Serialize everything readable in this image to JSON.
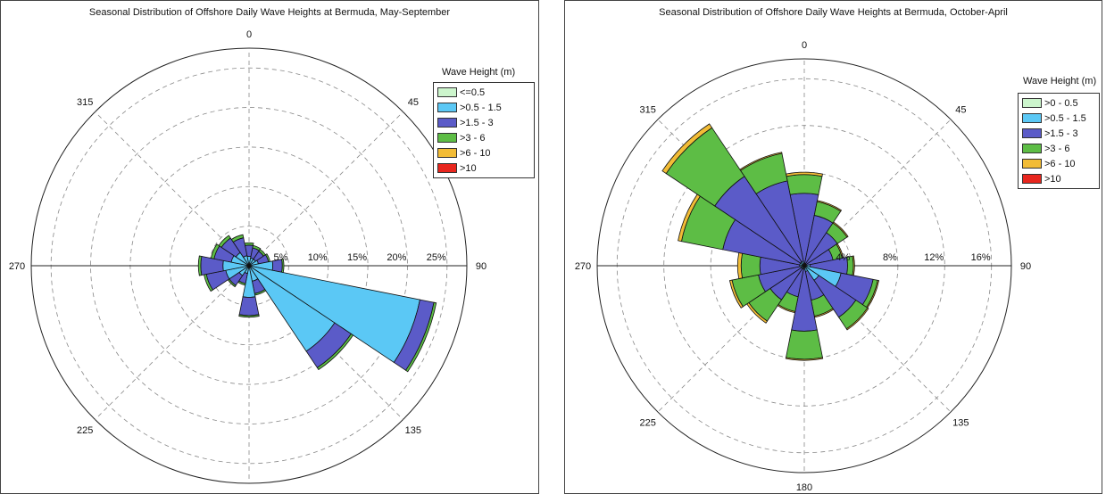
{
  "chart_data": [
    {
      "type": "wind-rose",
      "title": "Seasonal Distribution of Offshore Daily Wave Heights at Bermuda, May-September",
      "direction_labels": [
        "0",
        "45",
        "90",
        "135",
        "180",
        "225",
        "270",
        "315"
      ],
      "radial_ticks": [
        5,
        10,
        15,
        20,
        25
      ],
      "radial_tick_labels": [
        "5%",
        "10%",
        "15%",
        "20%",
        "25%"
      ],
      "rmax": 27.5,
      "legend_title": "Wave Height (m)",
      "series": [
        {
          "name": "<=0.5",
          "color": "#ccf5cc"
        },
        {
          "name": ">0.5 - 1.5",
          "color": "#5bc8f5"
        },
        {
          "name": ">1.5 - 3",
          "color": "#5b5bc8"
        },
        {
          "name": ">3 - 6",
          "color": "#5dbd45"
        },
        {
          "name": ">6 - 10",
          "color": "#f2bc36"
        },
        {
          "name": ">10",
          "color": "#e8261e"
        }
      ],
      "sector_width_deg": 22.5,
      "sectors": [
        {
          "dir": 0,
          "values": [
            0,
            1.2,
            1.4,
            0.3,
            0,
            0
          ]
        },
        {
          "dir": 22.5,
          "values": [
            0,
            1.0,
            1.3,
            0.3,
            0,
            0
          ]
        },
        {
          "dir": 45,
          "values": [
            0,
            1.0,
            1.2,
            0.3,
            0,
            0
          ]
        },
        {
          "dir": 67.5,
          "values": [
            0,
            1.2,
            1.3,
            0.2,
            0,
            0
          ]
        },
        {
          "dir": 90,
          "values": [
            0,
            3.0,
            1.2,
            0.2,
            0,
            0
          ]
        },
        {
          "dir": 112.5,
          "values": [
            0,
            22.0,
            1.8,
            0.3,
            0,
            0
          ]
        },
        {
          "dir": 135,
          "values": [
            0,
            13.0,
            2.5,
            0.3,
            0,
            0
          ]
        },
        {
          "dir": 157.5,
          "values": [
            0,
            2.0,
            1.6,
            0.2,
            0,
            0
          ]
        },
        {
          "dir": 180,
          "values": [
            0,
            4.0,
            2.3,
            0.2,
            0,
            0
          ]
        },
        {
          "dir": 202.5,
          "values": [
            0,
            1.0,
            1.3,
            0.2,
            0,
            0
          ]
        },
        {
          "dir": 225,
          "values": [
            0,
            1.5,
            1.5,
            0.2,
            0,
            0
          ]
        },
        {
          "dir": 247.5,
          "values": [
            0,
            3.0,
            2.5,
            0.3,
            0,
            0
          ]
        },
        {
          "dir": 270,
          "values": [
            0,
            3.3,
            2.8,
            0.3,
            0,
            0
          ]
        },
        {
          "dir": 292.5,
          "values": [
            0,
            2.3,
            2.2,
            0.4,
            0,
            0
          ]
        },
        {
          "dir": 315,
          "values": [
            0,
            2.0,
            2.2,
            0.4,
            0,
            0
          ]
        },
        {
          "dir": 337.5,
          "values": [
            0,
            1.3,
            2.3,
            0.4,
            0,
            0
          ]
        }
      ]
    },
    {
      "type": "wind-rose",
      "title": "Seasonal Distribution of Offshore Daily Wave Heights at Bermuda, October-April",
      "direction_labels": [
        "0",
        "45",
        "90",
        "135",
        "180",
        "225",
        "270",
        "315"
      ],
      "radial_ticks": [
        4,
        8,
        12,
        16
      ],
      "radial_tick_labels": [
        "4%",
        "8%",
        "12%",
        "16%"
      ],
      "rmax": 17.7,
      "legend_title": "Wave Height (m)",
      "series": [
        {
          "name": ">0 - 0.5",
          "color": "#ccf5cc"
        },
        {
          "name": ">0.5 - 1.5",
          "color": "#5bc8f5"
        },
        {
          "name": ">1.5 - 3",
          "color": "#5b5bc8"
        },
        {
          "name": ">3 - 6",
          "color": "#5dbd45"
        },
        {
          "name": ">6 - 10",
          "color": "#f2bc36"
        },
        {
          "name": ">10",
          "color": "#e8261e"
        }
      ],
      "sector_width_deg": 22.5,
      "sectors": [
        {
          "dir": 0,
          "values": [
            0,
            0.2,
            6.0,
            1.6,
            0.2,
            0
          ]
        },
        {
          "dir": 22.5,
          "values": [
            0,
            0.2,
            4.2,
            1.2,
            0.1,
            0
          ]
        },
        {
          "dir": 45,
          "values": [
            0,
            0.2,
            3.2,
            1.0,
            0.1,
            0
          ]
        },
        {
          "dir": 67.5,
          "values": [
            0,
            0.2,
            2.3,
            0.8,
            0.1,
            0
          ]
        },
        {
          "dir": 90,
          "values": [
            0,
            0.5,
            3.2,
            0.5,
            0.1,
            0
          ]
        },
        {
          "dir": 112.5,
          "values": [
            0,
            3.2,
            2.8,
            0.4,
            0.1,
            0
          ]
        },
        {
          "dir": 135,
          "values": [
            0,
            1.5,
            3.8,
            1.2,
            0.1,
            0
          ]
        },
        {
          "dir": 157.5,
          "values": [
            0,
            0.5,
            2.5,
            1.4,
            0.1,
            0
          ]
        },
        {
          "dir": 180,
          "values": [
            0,
            0.3,
            5.3,
            2.4,
            0.1,
            0
          ]
        },
        {
          "dir": 202.5,
          "values": [
            0,
            0.3,
            2.4,
            1.3,
            0.1,
            0
          ]
        },
        {
          "dir": 225,
          "values": [
            0,
            0.3,
            3.2,
            2.2,
            0.2,
            0
          ]
        },
        {
          "dir": 247.5,
          "values": [
            0,
            0.3,
            3.7,
            2.3,
            0.2,
            0
          ]
        },
        {
          "dir": 270,
          "values": [
            0,
            0.4,
            3.4,
            1.6,
            0.3,
            0
          ]
        },
        {
          "dir": 292.5,
          "values": [
            0,
            0.4,
            6.7,
            3.6,
            0.3,
            0
          ]
        },
        {
          "dir": 315,
          "values": [
            0,
            0.4,
            8.8,
            5.0,
            0.4,
            0
          ]
        },
        {
          "dir": 337.5,
          "values": [
            0,
            0.4,
            7.0,
            2.4,
            0.1,
            0
          ]
        }
      ]
    }
  ]
}
